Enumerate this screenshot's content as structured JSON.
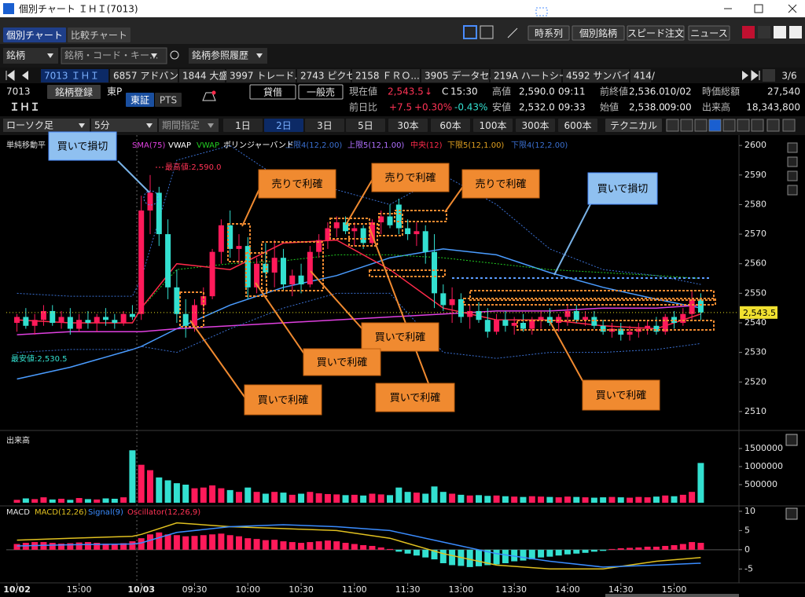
{
  "window": {
    "title": "個別チャート ＩＨＩ(7013)"
  },
  "tabs": [
    "個別チャート",
    "比較チャート"
  ],
  "tool_buttons": [
    "時系列",
    "個別銘柄",
    "スピード注文",
    "ニュース"
  ],
  "search": {
    "label": "銘柄",
    "placeholder": "銘柄・コード・キー...",
    "history": "銘柄参照履歴"
  },
  "ticker_tabs": [
    "7013 ＩＨＩ",
    "6857 アドバン...",
    "1844 大盛工",
    "3997 トレード...",
    "2743 ピクセル",
    "2158 ＦＲＯ...",
    "3905 データセ...",
    "219A ハートシード",
    "4592 サンバイオ",
    "414/"
  ],
  "page_indicator": "3/6",
  "quote": {
    "code": "7013",
    "name": "ＩＨＩ",
    "register": "銘柄登録",
    "market": "東P",
    "venue": "東証",
    "pts": "PTS",
    "margin": "貸借",
    "short": "一般売",
    "current_label": "現在値",
    "current": "2,543.5",
    "arrow": "↓",
    "status": "C",
    "current_time": "15:30",
    "high_label": "高値",
    "high": "2,590.0",
    "high_time": "09:11",
    "prev_label": "前終値",
    "prev": "2,536.0",
    "prev_date": "10/02",
    "cap_label": "時価総額",
    "cap": "27,540",
    "change_label": "前日比",
    "change": "+7.5",
    "change_pct": "+0.30%",
    "pts_pct": "-0.43%",
    "low_label": "安値",
    "low": "2,532.0",
    "low_time": "09:33",
    "open_label": "始値",
    "open": "2,538.0",
    "open_time": "09:00",
    "volume_label": "出来高",
    "volume": "18,343,800"
  },
  "toolbar": {
    "chart_kind": "ローソク足",
    "interval": "5分",
    "period": "期間指定",
    "ranges": [
      "1日",
      "2日",
      "3日",
      "5日",
      "30本",
      "60本",
      "100本",
      "300本",
      "600本"
    ],
    "technical": "テクニカル"
  },
  "chart_data": [
    {
      "type": "candlestick",
      "up_color": "#ff1a5a",
      "down_color": "#33e0d0",
      "xlim": [
        -1.2,
        81.3
      ],
      "ylim": [
        2504.4,
        2601.9
      ],
      "yticks": [
        2510,
        2520,
        2530,
        2540,
        2550,
        2560,
        2570,
        2580,
        2590,
        2600
      ],
      "candles": [
        [
          2540,
          2543,
          2537,
          2542
        ],
        [
          2542,
          2545,
          2538,
          2539
        ],
        [
          2539,
          2543,
          2536,
          2541
        ],
        [
          2541,
          2546,
          2539,
          2544
        ],
        [
          2544,
          2546,
          2539,
          2540
        ],
        [
          2540,
          2544,
          2538,
          2542
        ],
        [
          2542,
          2545,
          2536,
          2538
        ],
        [
          2538,
          2543,
          2537,
          2541
        ],
        [
          2541,
          2544,
          2538,
          2540
        ],
        [
          2540,
          2543,
          2537,
          2542
        ],
        [
          2542,
          2545,
          2539,
          2541
        ],
        [
          2541,
          2543,
          2538,
          2540
        ],
        [
          2540,
          2544,
          2539,
          2543
        ],
        [
          2543,
          2546,
          2541,
          2542
        ],
        [
          2543,
          2583,
          2541,
          2578
        ],
        [
          2578,
          2590,
          2570,
          2584
        ],
        [
          2584,
          2586,
          2566,
          2570
        ],
        [
          2570,
          2575,
          2548,
          2552
        ],
        [
          2552,
          2558,
          2540,
          2543
        ],
        [
          2543,
          2548,
          2535,
          2539
        ],
        [
          2539,
          2548,
          2537,
          2546
        ],
        [
          2546,
          2552,
          2543,
          2549
        ],
        [
          2549,
          2565,
          2548,
          2564
        ],
        [
          2564,
          2575,
          2560,
          2573
        ],
        [
          2573,
          2578,
          2562,
          2565
        ],
        [
          2565,
          2570,
          2560,
          2566
        ],
        [
          2566,
          2569,
          2548,
          2552
        ],
        [
          2552,
          2562,
          2550,
          2560
        ],
        [
          2560,
          2567,
          2555,
          2557
        ],
        [
          2557,
          2568,
          2552,
          2562
        ],
        [
          2562,
          2565,
          2551,
          2553
        ],
        [
          2553,
          2558,
          2549,
          2556
        ],
        [
          2556,
          2560,
          2550,
          2553
        ],
        [
          2553,
          2566,
          2552,
          2564
        ],
        [
          2564,
          2570,
          2562,
          2568
        ],
        [
          2568,
          2574,
          2565,
          2572
        ],
        [
          2572,
          2576,
          2569,
          2574
        ],
        [
          2574,
          2576,
          2570,
          2571
        ],
        [
          2571,
          2574,
          2566,
          2572
        ],
        [
          2572,
          2573,
          2565,
          2567
        ],
        [
          2567,
          2575,
          2566,
          2574
        ],
        [
          2574,
          2578,
          2570,
          2576
        ],
        [
          2576,
          2580,
          2572,
          2573
        ],
        [
          2580,
          2582,
          2570,
          2572
        ],
        [
          2572,
          2575,
          2568,
          2570
        ],
        [
          2570,
          2574,
          2566,
          2571
        ],
        [
          2571,
          2573,
          2560,
          2564
        ],
        [
          2564,
          2570,
          2545,
          2550
        ],
        [
          2550,
          2553,
          2544,
          2546
        ],
        [
          2546,
          2552,
          2540,
          2548
        ],
        [
          2548,
          2550,
          2540,
          2542
        ],
        [
          2542,
          2546,
          2538,
          2544
        ],
        [
          2544,
          2547,
          2540,
          2541
        ],
        [
          2541,
          2545,
          2535,
          2537
        ],
        [
          2537,
          2543,
          2536,
          2541
        ],
        [
          2541,
          2544,
          2537,
          2539
        ],
        [
          2539,
          2542,
          2536,
          2540
        ],
        [
          2540,
          2543,
          2537,
          2538
        ],
        [
          2538,
          2542,
          2536,
          2541
        ],
        [
          2541,
          2544,
          2538,
          2542
        ],
        [
          2542,
          2545,
          2539,
          2540
        ],
        [
          2540,
          2543,
          2537,
          2542
        ],
        [
          2542,
          2546,
          2539,
          2544
        ],
        [
          2544,
          2546,
          2540,
          2541
        ],
        [
          2541,
          2544,
          2539,
          2542
        ],
        [
          2542,
          2544,
          2538,
          2539
        ],
        [
          2539,
          2541,
          2536,
          2537
        ],
        [
          2537,
          2540,
          2535,
          2538
        ],
        [
          2538,
          2540,
          2534,
          2536
        ],
        [
          2536,
          2539,
          2534,
          2537
        ],
        [
          2537,
          2540,
          2535,
          2538
        ],
        [
          2538,
          2541,
          2536,
          2539
        ],
        [
          2539,
          2542,
          2536,
          2537
        ],
        [
          2537,
          2543,
          2536,
          2542
        ],
        [
          2542,
          2544,
          2538,
          2540
        ],
        [
          2540,
          2545,
          2539,
          2543
        ],
        [
          2543,
          2551,
          2541,
          2548
        ],
        [
          2548,
          2550,
          2541,
          2543.5
        ]
      ],
      "line_x": [
        0,
        6,
        13,
        14,
        18,
        24,
        30,
        36,
        42,
        48,
        54,
        60,
        66,
        72,
        77
      ],
      "series": [
        {
          "name": "単純移動平",
          "color": "#4a9cff",
          "values": [
            2521,
            2525,
            2531,
            2532,
            2538,
            2546,
            2552,
            2556,
            2562,
            2565,
            2563,
            2557,
            2552,
            2548,
            2545
          ]
        },
        {
          "name": "SMA(75)",
          "color": "#e040e0",
          "values": [
            2536,
            2537,
            2537,
            2537,
            2538,
            2539,
            2540,
            2541,
            2542,
            2543,
            2544,
            2544,
            2545,
            2545,
            2546
          ]
        },
        {
          "name": "VWAP",
          "color": "#22cc22",
          "dash": true,
          "values": [
            null,
            null,
            null,
            2545,
            2558,
            2560,
            2561,
            2563,
            2563,
            2562,
            2560,
            2558,
            2557,
            2556,
            2555
          ]
        },
        {
          "name": "上限4(12,2.00)",
          "color": "#3a6fd0",
          "dash": true,
          "values": [
            2550,
            2549,
            2549,
            2555,
            2595,
            2600,
            2588,
            2585,
            2580,
            2590,
            2580,
            2565,
            2558,
            2556,
            2553
          ]
        },
        {
          "name": "中央(12)",
          "color": "#ff2a4a",
          "values": [
            2541,
            2540,
            2540,
            2545,
            2560,
            2558,
            2567,
            2568,
            2558,
            2545,
            2541,
            2541,
            2539,
            2538,
            2543
          ]
        },
        {
          "name": "下限4(12,2.00)",
          "color": "#3a6fd0",
          "dash": true,
          "values": [
            2530,
            2531,
            2531,
            2532,
            2530,
            2538,
            2545,
            2550,
            2550,
            2530,
            2528,
            2530,
            2530,
            2531,
            2533
          ]
        }
      ],
      "legend_extra": [
        {
          "name": "VWAP",
          "color": "#ffffff"
        },
        {
          "name": "ボリンジャーバンド",
          "color": "#ffffff"
        },
        {
          "name": "上限5(12,1.00)",
          "color": "#b070ff"
        },
        {
          "name": "下限5(12,1.00)",
          "color": "#e0a020"
        }
      ],
      "high_label": "最高値:2,590.0",
      "low_label": "最安値:2,530.5",
      "last_price": {
        "value": 2543.5,
        "label": "2,543.5"
      },
      "callouts": [
        "買いで損切",
        "売りで利確",
        "売りで利確",
        "売りで利確",
        "買いで損切",
        "買いで利確",
        "買いで利確",
        "買いで利確",
        "買いで利確",
        "買いで利確"
      ]
    },
    {
      "type": "bar",
      "title": "出来高",
      "xlim": [
        -1.2,
        81.3
      ],
      "ylim": [
        0,
        1890000
      ],
      "yticks": [
        500000,
        1000000,
        1500000
      ],
      "values": [
        80000,
        120000,
        100000,
        150000,
        90000,
        110000,
        80000,
        130000,
        100000,
        90000,
        120000,
        110000,
        150000,
        1450000,
        1050000,
        900000,
        700000,
        620000,
        540000,
        500000,
        400000,
        420000,
        480000,
        400000,
        350000,
        300000,
        420000,
        300000,
        250000,
        300000,
        280000,
        220000,
        250000,
        300000,
        260000,
        240000,
        230000,
        210000,
        220000,
        200000,
        250000,
        230000,
        210000,
        420000,
        300000,
        280000,
        250000,
        450000,
        300000,
        250000,
        220000,
        200000,
        210000,
        190000,
        200000,
        180000,
        170000,
        160000,
        180000,
        170000,
        160000,
        150000,
        170000,
        160000,
        150000,
        140000,
        150000,
        160000,
        150000,
        140000,
        160000,
        150000,
        170000,
        200000,
        180000,
        220000,
        300000,
        1100000
      ]
    },
    {
      "type": "macd",
      "title": "MACD",
      "xlim": [
        -1.2,
        81.3
      ],
      "ylim": [
        -8.2,
        10.8
      ],
      "yticks": [
        -5,
        0,
        5,
        10
      ],
      "pos_color": "#ff1a5a",
      "neg_color": "#33e0d0",
      "oscillator": {
        "name": "Oscillator(12,26,9)",
        "color": "#ff3355",
        "values": [
          1.5,
          1.8,
          2,
          2,
          1.8,
          1.6,
          1.7,
          1.9,
          2,
          1.8,
          1.6,
          1.5,
          1.7,
          2.2,
          3,
          4,
          4.5,
          4,
          3.8,
          3.5,
          3.6,
          3.8,
          4,
          4.2,
          3.8,
          3.5,
          3,
          2.8,
          2.5,
          2.6,
          2.2,
          2,
          1.8,
          2,
          2.2,
          2.4,
          2.2,
          1.8,
          1.5,
          1.2,
          1,
          0.6,
          0.2,
          -0.5,
          -1,
          -1.5,
          -2,
          -2.5,
          -3.5,
          -4,
          -4.2,
          -4.5,
          -4.3,
          -4,
          -3.8,
          -3.5,
          -3,
          -2.8,
          -2.5,
          -2,
          -1.8,
          -1.5,
          -1.2,
          -1,
          -0.8,
          -0.5,
          -0.3,
          0.2,
          0.4,
          0.5,
          0.6,
          0.8,
          0.8,
          1,
          1.2,
          1.5,
          2,
          1.8
        ]
      },
      "line_x": [
        0,
        6,
        13,
        14,
        18,
        24,
        30,
        36,
        42,
        48,
        54,
        60,
        66,
        72,
        77
      ],
      "series": [
        {
          "name": "MACD(12,26)",
          "color": "#e0c020",
          "values": [
            2.5,
            3,
            3.5,
            4,
            7,
            6,
            5.5,
            5,
            3,
            -1,
            -4,
            -5,
            -5,
            -3,
            -2
          ]
        },
        {
          "name": "Signal(9)",
          "color": "#3a8cff",
          "values": [
            1,
            1.3,
            1.5,
            1.8,
            4.5,
            6,
            6.5,
            6,
            5,
            2,
            -1,
            -3,
            -4.5,
            -4,
            -3.5
          ]
        }
      ],
      "xticks": [
        {
          "value": 0,
          "label": "10/02"
        },
        {
          "value": 7,
          "label": "15:00"
        },
        {
          "value": 14,
          "label": "10/03"
        },
        {
          "value": 20,
          "label": "09:30"
        },
        {
          "value": 26,
          "label": "10:00"
        },
        {
          "value": 32,
          "label": "10:30"
        },
        {
          "value": 38,
          "label": "11:00"
        },
        {
          "value": 44,
          "label": "11:30"
        },
        {
          "value": 50,
          "label": "13:00"
        },
        {
          "value": 56,
          "label": "13:30"
        },
        {
          "value": 62,
          "label": "14:00"
        },
        {
          "value": 68,
          "label": "14:30"
        },
        {
          "value": 74,
          "label": "15:00"
        }
      ]
    }
  ]
}
